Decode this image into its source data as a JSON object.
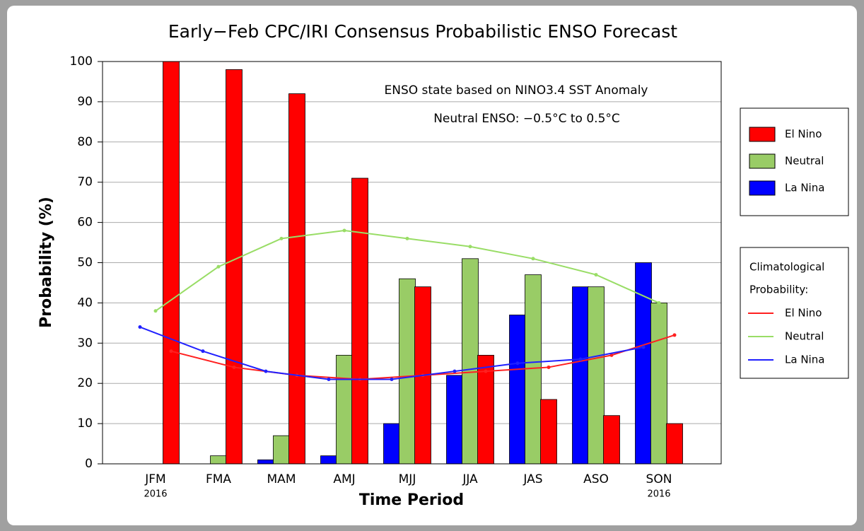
{
  "chart_data": {
    "type": "bar",
    "title": "Early−Feb CPC/IRI Consensus Probabilistic ENSO Forecast",
    "annotations": [
      "ENSO state based on NINO3.4 SST Anomaly",
      "Neutral ENSO: −0.5°C to 0.5°C"
    ],
    "x_label": "Time Period",
    "y_label": "Probability (%)",
    "categories": [
      "JFM",
      "FMA",
      "MAM",
      "AMJ",
      "MJJ",
      "JJA",
      "JAS",
      "ASO",
      "SON"
    ],
    "category_sublabels": [
      "2016",
      null,
      null,
      null,
      null,
      null,
      null,
      null,
      "2016"
    ],
    "series": [
      {
        "name": "La Nina",
        "color": "#0000ff",
        "values": [
          0,
          0,
          1,
          2,
          10,
          22,
          37,
          44,
          50
        ]
      },
      {
        "name": "Neutral",
        "color": "#99cc66",
        "values": [
          0,
          2,
          7,
          27,
          46,
          51,
          47,
          44,
          40
        ]
      },
      {
        "name": "El Nino",
        "color": "#ff0000",
        "values": [
          100,
          98,
          92,
          71,
          44,
          27,
          16,
          12,
          10
        ]
      }
    ],
    "legend_order": [
      2,
      1,
      0
    ],
    "climatology_title": [
      "Climatological",
      "Probability:"
    ],
    "climatology": [
      {
        "name": "El Nino",
        "color": "#ff2020",
        "values": [
          28,
          24,
          22,
          21,
          22,
          23,
          24,
          27,
          32
        ]
      },
      {
        "name": "Neutral",
        "color": "#99dd66",
        "values": [
          38,
          49,
          56,
          58,
          56,
          54,
          51,
          47,
          40
        ]
      },
      {
        "name": "La Nina",
        "color": "#2020ff",
        "values": [
          34,
          28,
          23,
          21,
          21,
          23,
          25,
          26,
          29
        ]
      }
    ],
    "ylim": [
      0,
      100
    ],
    "yticks": [
      0,
      10,
      20,
      30,
      40,
      50,
      60,
      70,
      80,
      90,
      100
    ],
    "grid": true
  }
}
